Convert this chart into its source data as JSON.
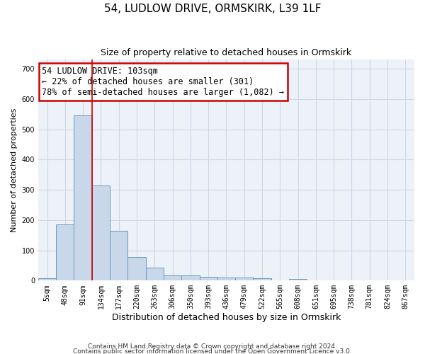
{
  "title": "54, LUDLOW DRIVE, ORMSKIRK, L39 1LF",
  "subtitle": "Size of property relative to detached houses in Ormskirk",
  "xlabel": "Distribution of detached houses by size in Ormskirk",
  "ylabel": "Number of detached properties",
  "bar_labels": [
    "5sqm",
    "48sqm",
    "91sqm",
    "134sqm",
    "177sqm",
    "220sqm",
    "263sqm",
    "306sqm",
    "350sqm",
    "393sqm",
    "436sqm",
    "479sqm",
    "522sqm",
    "565sqm",
    "608sqm",
    "651sqm",
    "695sqm",
    "738sqm",
    "781sqm",
    "824sqm",
    "867sqm"
  ],
  "bar_values": [
    8,
    185,
    545,
    315,
    165,
    77,
    42,
    18,
    18,
    12,
    11,
    10,
    8,
    0,
    5,
    0,
    0,
    0,
    0,
    0,
    0
  ],
  "bar_color": "#c8d8ea",
  "bar_edge_color": "#6699bb",
  "vline_color": "#cc0000",
  "annotation_text": "54 LUDLOW DRIVE: 103sqm\n← 22% of detached houses are smaller (301)\n78% of semi-detached houses are larger (1,082) →",
  "annotation_box_color": "#ffffff",
  "annotation_box_edge": "#cc0000",
  "ylim": [
    0,
    730
  ],
  "yticks": [
    0,
    100,
    200,
    300,
    400,
    500,
    600,
    700
  ],
  "grid_color": "#ccd8e8",
  "bg_color": "#edf2f8",
  "title_fontsize": 11,
  "subtitle_fontsize": 9,
  "footer1": "Contains HM Land Registry data © Crown copyright and database right 2024.",
  "footer2": "Contains public sector information licensed under the Open Government Licence v3.0."
}
